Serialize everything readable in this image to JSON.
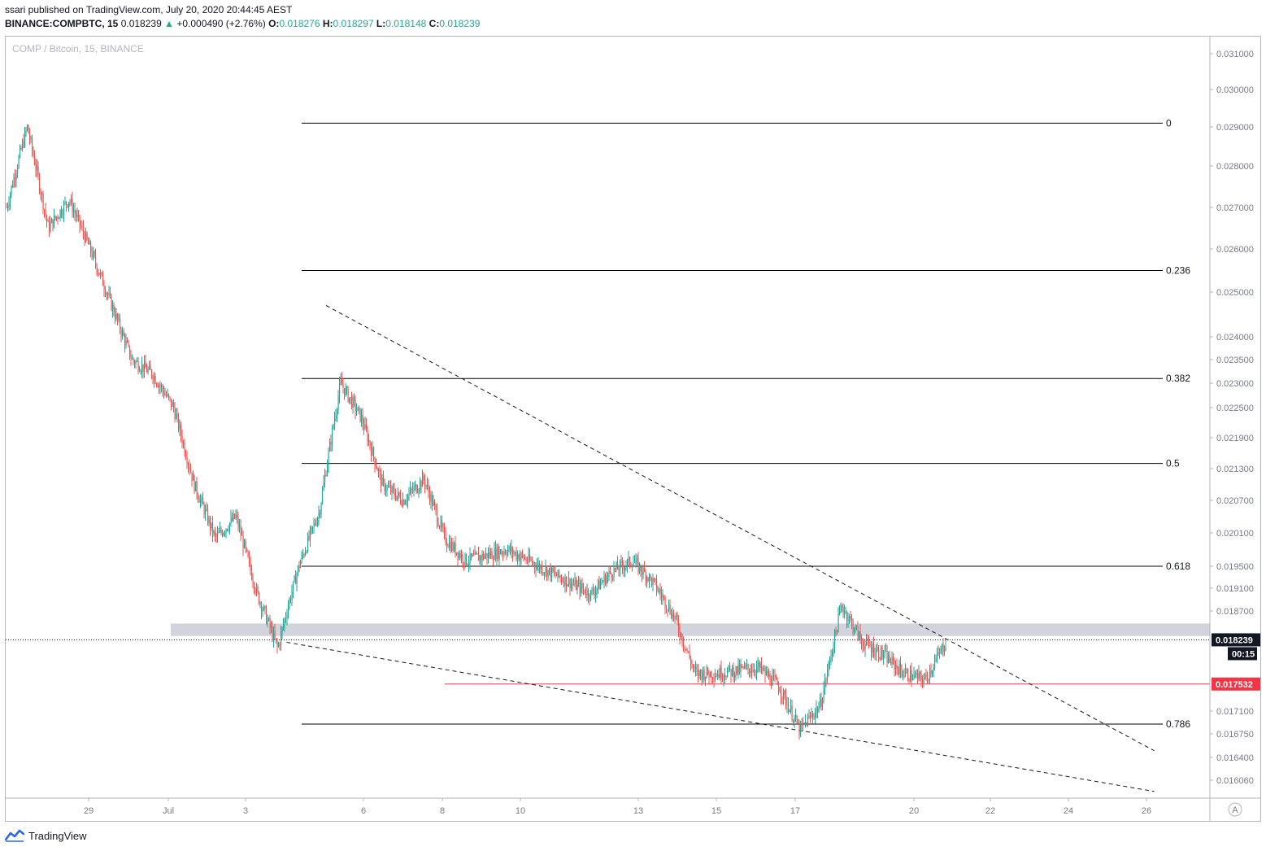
{
  "header": {
    "publisher": "ssari published on TradingView.com, July 20, 2020 20:44:45 AEST",
    "symbol": "BINANCE:COMPBTC, 15",
    "last": "0.018239",
    "change": "+0.000490 (+2.76%)",
    "o_label": "O:",
    "o": "0.018276",
    "h_label": "H:",
    "h": "0.018297",
    "l_label": "L:",
    "l": "0.018148",
    "c_label": "C:",
    "c": "0.018239"
  },
  "watermark": "COMP / Bitcoin, 15, BINANCE",
  "footer": {
    "brand": "TradingView",
    "logo_icon": "tradingview-logo-icon"
  },
  "auto_button": "A",
  "colors": {
    "up": "#26a69a",
    "down": "#ef5350",
    "line": "#000000",
    "red_line": "#f23645",
    "zone": "#d1d4dc"
  },
  "chart_data": {
    "type": "candlestick",
    "title": "COMP / Bitcoin, 15, BINANCE",
    "x_ticks": [
      "29",
      "Jul",
      "3",
      "6",
      "8",
      "10",
      "13",
      "15",
      "17",
      "20",
      "22",
      "24",
      "26"
    ],
    "y_ticks": [
      "0.031000",
      "0.030000",
      "0.029000",
      "0.028000",
      "0.027000",
      "0.026000",
      "0.025000",
      "0.024000",
      "0.023500",
      "0.023000",
      "0.022500",
      "0.021900",
      "0.021300",
      "0.020700",
      "0.020100",
      "0.019500",
      "0.019100",
      "0.018700",
      "0.017100",
      "0.016750",
      "0.016400",
      "0.016060"
    ],
    "price_labels": [
      {
        "value": "0.018239",
        "style": "last-price"
      },
      {
        "value": "00:15",
        "style": "countdown"
      },
      {
        "value": "0.017532",
        "style": "horizontal-line"
      }
    ],
    "fib_levels": [
      "0",
      "0.236",
      "0.382",
      "0.5",
      "0.618",
      "0.786"
    ],
    "fib_values": [
      0.0291,
      0.0255,
      0.0231,
      0.0214,
      0.0195,
      0.0169
    ],
    "horizontal_line": 0.017532,
    "support_zone": [
      0.0183,
      0.0185
    ],
    "trendlines": [
      {
        "name": "descending-resistance",
        "style": "dashed",
        "from": {
          "x": "Jul 5",
          "y": 0.0247
        },
        "to": {
          "x": "Jul 26",
          "y": 0.0165
        }
      },
      {
        "name": "descending-support",
        "style": "dashed",
        "from": {
          "x": "Jul 4",
          "y": 0.0182
        },
        "to": {
          "x": "Jul 26",
          "y": 0.0159
        }
      }
    ],
    "price_path": [
      [
        "Jun 28",
        0.027
      ],
      [
        "Jun 28",
        0.029
      ],
      [
        "Jun 29",
        0.0265
      ],
      [
        "Jun 29",
        0.0272
      ],
      [
        "Jun 30",
        0.026
      ],
      [
        "Jul 1",
        0.0235
      ],
      [
        "Jul 1",
        0.0232
      ],
      [
        "Jul 2",
        0.0225
      ],
      [
        "Jul 2",
        0.021
      ],
      [
        "Jul 3",
        0.02
      ],
      [
        "Jul 3",
        0.0204
      ],
      [
        "Jul 4",
        0.019
      ],
      [
        "Jul 4",
        0.0181
      ],
      [
        "Jul 5",
        0.0195
      ],
      [
        "Jul 5",
        0.0205
      ],
      [
        "Jul 6",
        0.023
      ],
      [
        "Jul 6",
        0.0223
      ],
      [
        "Jul 7",
        0.021
      ],
      [
        "Jul 7",
        0.0207
      ],
      [
        "Jul 8",
        0.0211
      ],
      [
        "Jul 8",
        0.02
      ],
      [
        "Jul 9",
        0.0196
      ],
      [
        "Jul 10",
        0.0198
      ],
      [
        "Jul 11",
        0.0194
      ],
      [
        "Jul 12",
        0.019
      ],
      [
        "Jul 12",
        0.0194
      ],
      [
        "Jul 13",
        0.0196
      ],
      [
        "Jul 13",
        0.0192
      ],
      [
        "Jul 14",
        0.0186
      ],
      [
        "Jul 14",
        0.0177
      ],
      [
        "Jul 15",
        0.0177
      ],
      [
        "Jul 16",
        0.0178
      ],
      [
        "Jul 16",
        0.0175
      ],
      [
        "Jul 17",
        0.0168
      ],
      [
        "Jul 17",
        0.0172
      ],
      [
        "Jul 18",
        0.0188
      ],
      [
        "Jul 18",
        0.0182
      ],
      [
        "Jul 19",
        0.018
      ],
      [
        "Jul 19",
        0.0177
      ],
      [
        "Jul 20",
        0.0176
      ],
      [
        "Jul 20",
        0.0182
      ]
    ]
  }
}
